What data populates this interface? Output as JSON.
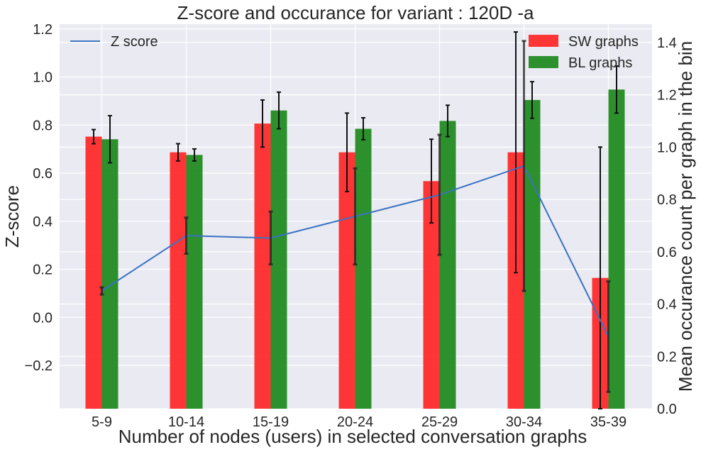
{
  "chart_data": {
    "type": "bar",
    "title": "Z-score and occurance for variant : 120D -a",
    "xlabel": "Number of nodes (users) in selected conversation graphs",
    "ylabel": "Z-score",
    "ylabel_right": "Mean occurance count per graph in the bin",
    "categories": [
      "5-9",
      "10-14",
      "15-19",
      "20-24",
      "25-29",
      "30-34",
      "35-39"
    ],
    "ylim": [
      -0.38,
      1.22
    ],
    "ylim_right": [
      0.0,
      1.47
    ],
    "y_ticks": [
      "−0.2",
      "0.0",
      "0.2",
      "0.4",
      "0.6",
      "0.8",
      "1.0",
      "1.2"
    ],
    "y_tick_values": [
      -0.2,
      0.0,
      0.2,
      0.4,
      0.6,
      0.8,
      1.0,
      1.2
    ],
    "y_right_ticks": [
      "0.0",
      "0.2",
      "0.4",
      "0.6",
      "0.8",
      "1.0",
      "1.2",
      "1.4"
    ],
    "y_right_tick_values": [
      0.0,
      0.2,
      0.4,
      0.6,
      0.8,
      1.0,
      1.2,
      1.4
    ],
    "grid": true,
    "line_series": {
      "name": "Z score",
      "axis": "left",
      "color": "#3a72c4",
      "values": [
        0.11,
        0.34,
        0.33,
        0.42,
        0.51,
        0.63,
        -0.08
      ],
      "errors": [
        0.015,
        0.075,
        0.11,
        0.2,
        0.25,
        0.52,
        0.23
      ]
    },
    "bar_series": [
      {
        "name": "SW graphs",
        "axis": "right",
        "color": "#ff2b2b",
        "values": [
          1.04,
          0.98,
          1.09,
          0.98,
          0.87,
          0.98,
          0.5
        ],
        "errors": [
          0.027,
          0.033,
          0.09,
          0.15,
          0.16,
          0.46,
          0.5
        ]
      },
      {
        "name": "BL graphs",
        "axis": "right",
        "color": "#228b22",
        "values": [
          1.03,
          0.97,
          1.14,
          1.07,
          1.1,
          1.18,
          1.22
        ],
        "errors": [
          0.09,
          0.023,
          0.07,
          0.042,
          0.06,
          0.07,
          0.09
        ]
      }
    ],
    "legend_left": "upper-left",
    "legend_right": "upper-right"
  }
}
